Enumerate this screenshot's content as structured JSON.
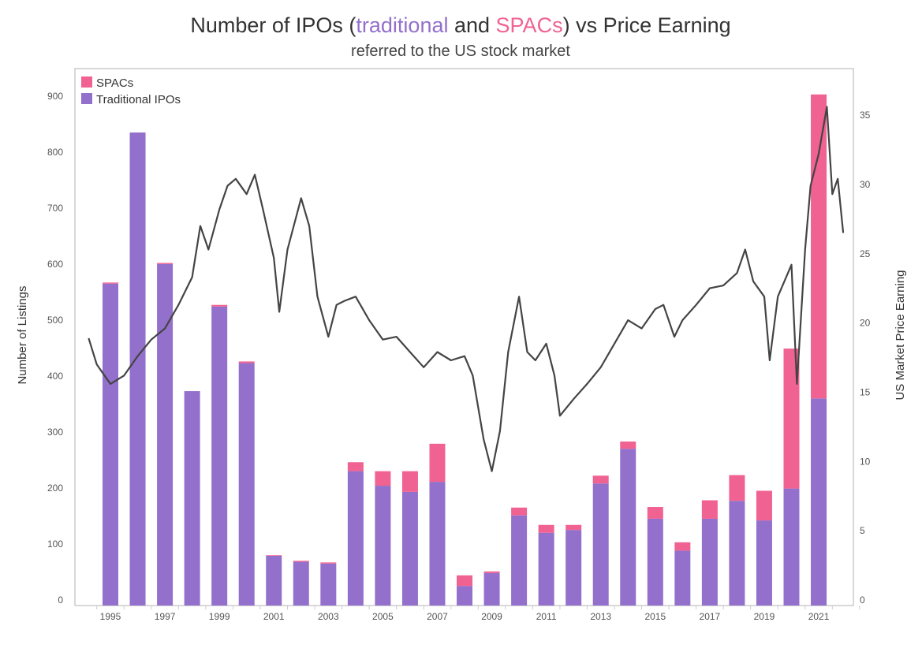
{
  "chart_data": {
    "type": "bar+line",
    "title_parts": [
      "Number of IPOs (",
      "traditional",
      " and ",
      "SPACs",
      ") vs Price Earning"
    ],
    "subtitle": "referred to the US stock market",
    "ylabel": "Number of Listings",
    "y2label": "US Market Price Earning",
    "ylim": [
      0,
      950
    ],
    "y2lim": [
      0,
      37
    ],
    "yticks": [
      0,
      100,
      200,
      300,
      400,
      500,
      600,
      700,
      800,
      900
    ],
    "y2ticks": [
      0,
      5,
      10,
      15,
      20,
      25,
      30,
      35
    ],
    "xticks": [
      "1995",
      "1997",
      "1999",
      "2001",
      "2003",
      "2005",
      "2007",
      "2009",
      "2011",
      "2013",
      "2015",
      "2017",
      "2019",
      "2021"
    ],
    "legend_position": "top-left",
    "colors": {
      "spacs": "#f06292",
      "traditional": "#9370cc",
      "pe_line": "#444444"
    },
    "categories": [
      1995,
      1996,
      1997,
      1998,
      1999,
      2000,
      2001,
      2002,
      2003,
      2004,
      2005,
      2006,
      2007,
      2008,
      2009,
      2010,
      2011,
      2012,
      2013,
      2014,
      2015,
      2016,
      2017,
      2018,
      2019,
      2020,
      2021
    ],
    "series": [
      {
        "name": "Traditional IPOs",
        "values": [
          575,
          845,
          610,
          383,
          534,
          433,
          89,
          78,
          75,
          240,
          214,
          203,
          221,
          35,
          58,
          161,
          130,
          135,
          218,
          280,
          155,
          98,
          155,
          187,
          152,
          209,
          370
        ]
      },
      {
        "name": "SPACs",
        "values": [
          2,
          0,
          2,
          0,
          3,
          3,
          1,
          2,
          2,
          16,
          26,
          37,
          68,
          19,
          3,
          14,
          14,
          9,
          14,
          13,
          21,
          15,
          33,
          46,
          53,
          250,
          543
        ]
      }
    ],
    "pe_series": {
      "name": "US Market Price Earning",
      "x": [
        1994.2,
        1994.5,
        1995,
        1995.5,
        1996,
        1996.5,
        1997,
        1997.5,
        1998,
        1998.3,
        1998.6,
        1999,
        1999.3,
        1999.6,
        2000,
        2000.3,
        2000.6,
        2001,
        2001.2,
        2001.5,
        2002,
        2002.3,
        2002.6,
        2003,
        2003.3,
        2003.6,
        2004,
        2004.5,
        2005,
        2005.5,
        2006,
        2006.5,
        2007,
        2007.5,
        2008,
        2008.3,
        2008.7,
        2009,
        2009.3,
        2009.6,
        2010,
        2010.3,
        2010.6,
        2011,
        2011.3,
        2011.5,
        2012,
        2012.5,
        2013,
        2013.5,
        2014,
        2014.5,
        2015,
        2015.3,
        2015.7,
        2016,
        2016.5,
        2017,
        2017.5,
        2018,
        2018.3,
        2018.6,
        2019,
        2019.2,
        2019.5,
        2020,
        2020.2,
        2020.5,
        2020.7,
        2021,
        2021.3,
        2021.5,
        2021.7,
        2021.9
      ],
      "y": [
        19.3,
        17.4,
        16.0,
        16.6,
        18.0,
        19.2,
        20.0,
        21.7,
        23.7,
        27.4,
        25.7,
        28.6,
        30.3,
        30.8,
        29.7,
        31.1,
        28.6,
        25.1,
        21.2,
        25.7,
        29.4,
        27.4,
        22.3,
        19.4,
        21.7,
        22.0,
        22.3,
        20.6,
        19.2,
        19.4,
        18.3,
        17.2,
        18.3,
        17.7,
        18.0,
        16.6,
        12.0,
        9.7,
        12.6,
        18.3,
        22.3,
        18.3,
        17.7,
        18.9,
        16.6,
        13.7,
        14.9,
        16.0,
        17.2,
        18.9,
        20.6,
        20.0,
        21.4,
        21.7,
        19.4,
        20.6,
        21.7,
        22.9,
        23.1,
        24.0,
        25.7,
        23.4,
        22.3,
        17.7,
        22.3,
        24.6,
        16.0,
        25.7,
        30.3,
        32.6,
        36.0,
        29.7,
        30.8,
        26.9
      ]
    },
    "legend": [
      "SPACs",
      "Traditional IPOs"
    ]
  }
}
